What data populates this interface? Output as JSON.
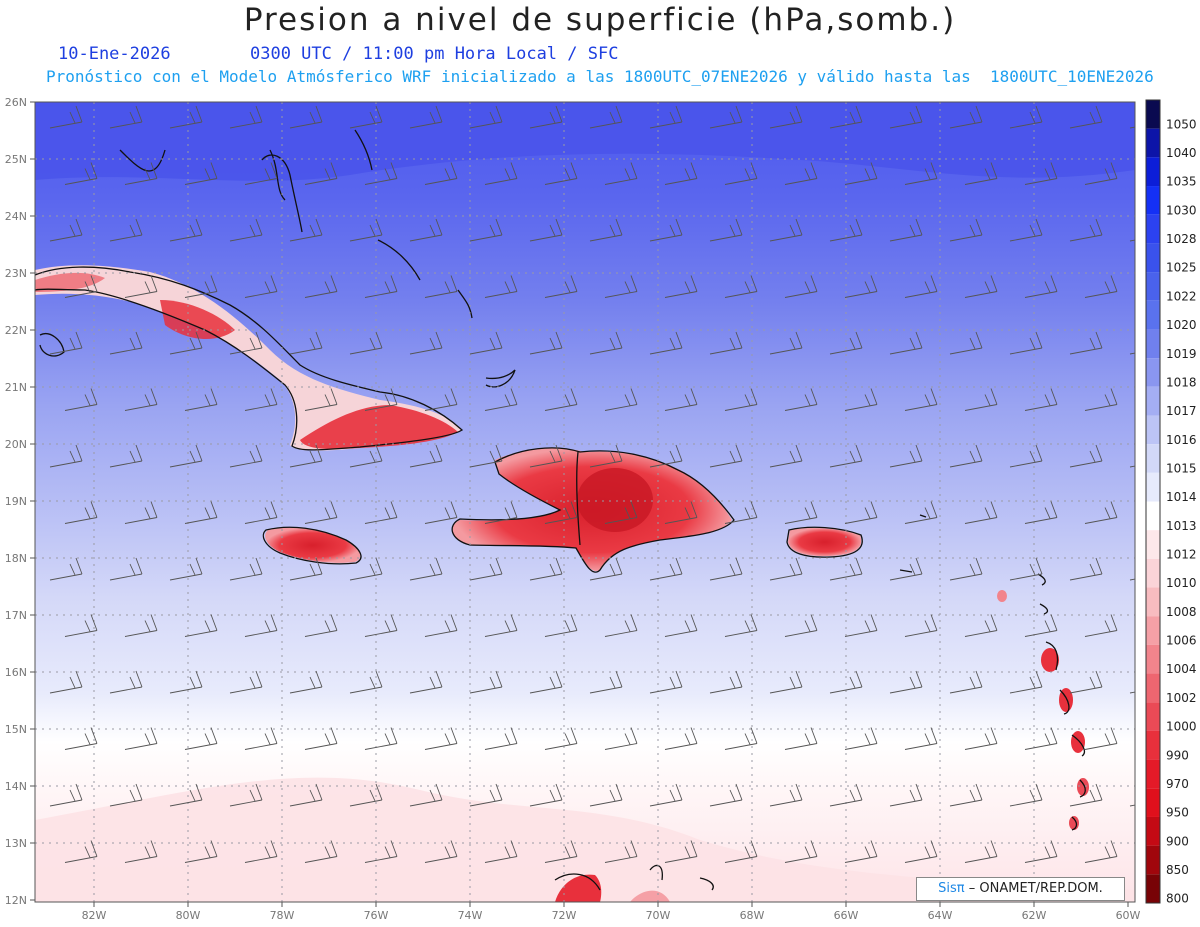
{
  "header": {
    "title": "Presion a nivel de superficie (hPa,somb.)",
    "date": "10-Ene-2026",
    "time_info": "0300 UTC / 11:00 pm Hora Local / SFC",
    "forecast_info": "Pronóstico con el Modelo Atmósferico WRF inicializado a las 1800UTC_07ENE2026 y válido hasta las  1800UTC_10ENE2026"
  },
  "axes": {
    "x_ticks": [
      "82W",
      "80W",
      "78W",
      "76W",
      "74W",
      "72W",
      "70W",
      "68W",
      "66W",
      "64W",
      "62W",
      "60W"
    ],
    "y_ticks": [
      "26N",
      "25N",
      "24N",
      "23N",
      "22N",
      "21N",
      "20N",
      "19N",
      "18N",
      "17N",
      "16N",
      "15N",
      "14N",
      "13N",
      "12N"
    ]
  },
  "colorbar": {
    "levels": [
      "1050",
      "1040",
      "1035",
      "1030",
      "1028",
      "1025",
      "1022",
      "1020",
      "1019",
      "1018",
      "1017",
      "1016",
      "1015",
      "1014",
      "1013",
      "1012",
      "1010",
      "1008",
      "1006",
      "1004",
      "1002",
      "1000",
      "990",
      "970",
      "950",
      "900",
      "850",
      "800"
    ],
    "colors": [
      "#0a0a50",
      "#0c14a8",
      "#0c1ed8",
      "#1430f5",
      "#2c42f0",
      "#3a52ec",
      "#4a62ec",
      "#5a72ee",
      "#7080ee",
      "#8a96f0",
      "#a4aef4",
      "#bcc4f6",
      "#d2d8f8",
      "#e6eafc",
      "#ffffff",
      "#fde8ea",
      "#fbd4d8",
      "#f8bcc0",
      "#f5a0a6",
      "#f2848c",
      "#ee6670",
      "#ea4a56",
      "#e8303c",
      "#e41a28",
      "#e0101c",
      "#c40a14",
      "#a0060c",
      "#780306"
    ]
  },
  "map_fill_colors": {
    "band_north": "#5660ec",
    "band_mid": "#8892ee",
    "band_south": "#cdd2f7",
    "low_pressure_land": "#e83038"
  },
  "credit": {
    "brand": "Sisπ",
    "text": "– ONAMET/REP.DOM."
  }
}
